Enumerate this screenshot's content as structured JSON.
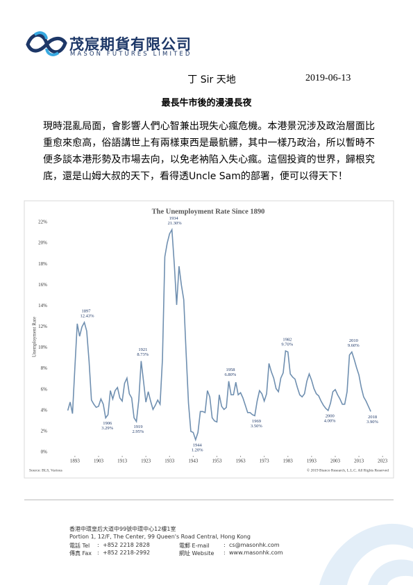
{
  "header": {
    "company_cn": "茂宸期貨有限公司",
    "company_en": "MASON FUTURES LIMITED"
  },
  "column": "丁 Sir 天地",
  "date": "2019-06-13",
  "article": {
    "title": "最長牛市後的漫漫長夜",
    "body": "現時混亂局面，會影響人們心智兼出現失心瘋危機。本港景況涉及政治層面比重愈來愈高，俗語講世上有兩樣東西是最骯髒，其中一樣乃政治，所以暫時不便多談本港形勢及市場去向，以免老衲陷入失心瘋。這個投資的世界，歸根究底，還是山姆大叔的天下，看得透Uncle Sam的部署，便可以得天下！"
  },
  "chart_data": {
    "type": "line",
    "title": "The Unemployment Rate Since 1890",
    "y_label": "Unemployment Rate",
    "color": "#6f8fb0",
    "grid": false,
    "x": [
      1890,
      1891,
      1892,
      1893,
      1894,
      1895,
      1896,
      1897,
      1898,
      1899,
      1900,
      1901,
      1902,
      1903,
      1904,
      1905,
      1906,
      1907,
      1908,
      1909,
      1910,
      1911,
      1912,
      1913,
      1914,
      1915,
      1916,
      1917,
      1918,
      1919,
      1920,
      1921,
      1922,
      1923,
      1924,
      1925,
      1926,
      1927,
      1928,
      1929,
      1930,
      1931,
      1932,
      1933,
      1934,
      1935,
      1936,
      1937,
      1938,
      1939,
      1940,
      1941,
      1942,
      1943,
      1944,
      1945,
      1946,
      1947,
      1948,
      1949,
      1950,
      1951,
      1952,
      1953,
      1954,
      1955,
      1956,
      1957,
      1958,
      1959,
      1960,
      1961,
      1962,
      1963,
      1964,
      1965,
      1966,
      1967,
      1968,
      1969,
      1970,
      1971,
      1972,
      1973,
      1974,
      1975,
      1976,
      1977,
      1978,
      1979,
      1980,
      1981,
      1982,
      1983,
      1984,
      1985,
      1986,
      1987,
      1988,
      1989,
      1990,
      1991,
      1992,
      1993,
      1994,
      1995,
      1996,
      1997,
      1998,
      1999,
      2000,
      2001,
      2002,
      2003,
      2004,
      2005,
      2006,
      2007,
      2008,
      2009,
      2010,
      2011,
      2012,
      2013,
      2014,
      2015,
      2016,
      2017,
      2018
    ],
    "values": [
      4.0,
      4.8,
      3.7,
      8.1,
      12.3,
      11.1,
      12.0,
      12.43,
      11.6,
      8.7,
      5.0,
      4.6,
      4.3,
      4.4,
      5.1,
      4.6,
      3.29,
      3.6,
      5.9,
      5.1,
      5.9,
      6.2,
      5.2,
      4.9,
      6.6,
      7.1,
      5.6,
      5.2,
      3.3,
      2.95,
      5.0,
      8.73,
      6.8,
      4.8,
      5.8,
      4.9,
      4.1,
      4.5,
      5.0,
      4.6,
      8.9,
      18.7,
      20.0,
      20.9,
      21.3,
      18.0,
      14.1,
      17.8,
      16.0,
      14.6,
      9.5,
      4.7,
      2.0,
      1.9,
      1.2,
      1.9,
      3.9,
      3.9,
      3.8,
      5.9,
      5.3,
      3.3,
      3.0,
      2.9,
      5.5,
      4.4,
      4.1,
      4.3,
      6.8,
      5.5,
      5.5,
      6.7,
      5.5,
      5.7,
      5.2,
      4.5,
      3.8,
      3.8,
      3.6,
      3.5,
      4.9,
      5.9,
      5.6,
      4.9,
      5.6,
      8.5,
      7.7,
      7.1,
      6.1,
      5.8,
      7.1,
      7.6,
      9.7,
      9.6,
      7.5,
      7.2,
      7.0,
      6.2,
      5.5,
      5.3,
      5.6,
      6.8,
      7.5,
      6.9,
      6.1,
      5.6,
      5.4,
      4.9,
      4.5,
      4.2,
      4.0,
      4.7,
      5.8,
      6.0,
      5.5,
      5.1,
      4.6,
      4.6,
      5.8,
      9.3,
      9.6,
      8.9,
      8.1,
      7.4,
      6.2,
      5.3,
      4.9,
      4.4,
      3.9
    ],
    "xlim": [
      1886,
      2025
    ],
    "xticks": [
      1893,
      1903,
      1913,
      1923,
      1933,
      1943,
      1953,
      1963,
      1973,
      1983,
      1993,
      2003,
      2013,
      2023
    ],
    "ylim": [
      0,
      22
    ],
    "yticks": [
      {
        "value": 0,
        "label": "0%"
      },
      {
        "value": 2,
        "label": "2%"
      },
      {
        "value": 4,
        "label": "4%"
      },
      {
        "value": 6,
        "label": "6%"
      },
      {
        "value": 8,
        "label": "8%"
      },
      {
        "value": 10,
        "label": "10%"
      },
      {
        "value": 12,
        "label": "12%"
      },
      {
        "value": 14,
        "label": "14%"
      },
      {
        "value": 16,
        "label": "16%"
      },
      {
        "value": 18,
        "label": "18%"
      },
      {
        "value": 20,
        "label": "20%"
      },
      {
        "value": 22,
        "label": "22%"
      }
    ],
    "annotations": [
      {
        "year": "1897",
        "label": "12.43%"
      },
      {
        "year": "1906",
        "label": "3.29%"
      },
      {
        "year": "1919",
        "label": "2.95%"
      },
      {
        "year": "1921",
        "label": "8.73%"
      },
      {
        "year": "1934",
        "label": "21.30%"
      },
      {
        "year": "1944",
        "label": "1.20%"
      },
      {
        "year": "1958",
        "label": "6.80%"
      },
      {
        "year": "1969",
        "label": "3.50%"
      },
      {
        "year": "1982",
        "label": "9.70%"
      },
      {
        "year": "2000",
        "label": "4.00%"
      },
      {
        "year": "2010",
        "label": "9.60%"
      },
      {
        "year": "2018",
        "label": "3.90%"
      }
    ],
    "source": "Source: BLS, Various",
    "copyright": "© 2019 Bianco Research, L.L.C. All Rights Reserved"
  },
  "footer": {
    "address_cn": "香港中環皇后大道中99號中環中心12樓1室",
    "address_en": "Portion 1, 12/F, The Center, 99 Queen's Road Central, Hong Kong",
    "contacts": [
      {
        "label": "電話 Tel",
        "value": "+852 2218 2828"
      },
      {
        "label": "電郵 E-mail",
        "value": "cs@masonhk.com"
      },
      {
        "label": "傳真 Fax",
        "value": "+852 2218-2992"
      },
      {
        "label": "網址 Website",
        "value": "www.masonhk.com"
      }
    ]
  }
}
